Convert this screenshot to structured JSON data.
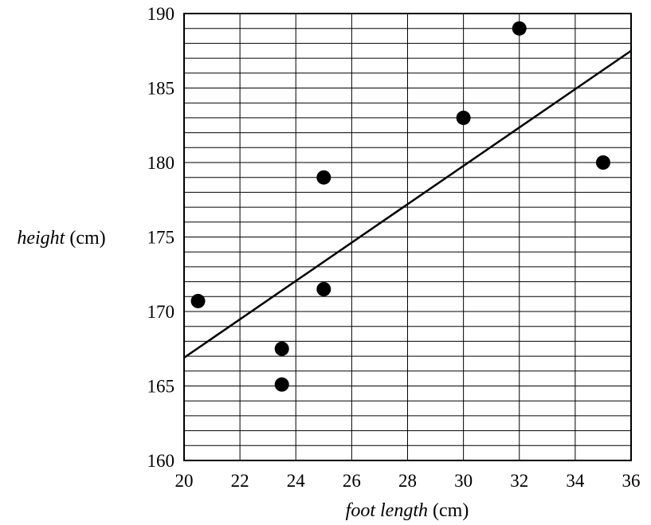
{
  "chart_data": {
    "type": "scatter",
    "xlabel": "foot length",
    "xlabel_unit": "(cm)",
    "ylabel": "height",
    "ylabel_unit": "(cm)",
    "xlim": [
      20,
      36
    ],
    "ylim": [
      160,
      190
    ],
    "x_ticks": [
      "20",
      "22",
      "24",
      "26",
      "28",
      "30",
      "32",
      "34",
      "36"
    ],
    "y_ticks": [
      "160",
      "165",
      "170",
      "175",
      "180",
      "185",
      "190"
    ],
    "grid": true,
    "grid_minor_y_step": 1,
    "grid_minor_x_step": 2,
    "points": [
      {
        "x": 20.5,
        "y": 170.7
      },
      {
        "x": 23.5,
        "y": 167.5
      },
      {
        "x": 23.5,
        "y": 165.1
      },
      {
        "x": 25.0,
        "y": 179.0
      },
      {
        "x": 25.0,
        "y": 171.5
      },
      {
        "x": 30.0,
        "y": 183.0
      },
      {
        "x": 32.0,
        "y": 189.0
      },
      {
        "x": 35.0,
        "y": 180.0
      }
    ],
    "trend_line": {
      "x": [
        20,
        36
      ],
      "y": [
        166.9,
        187.5
      ]
    }
  }
}
